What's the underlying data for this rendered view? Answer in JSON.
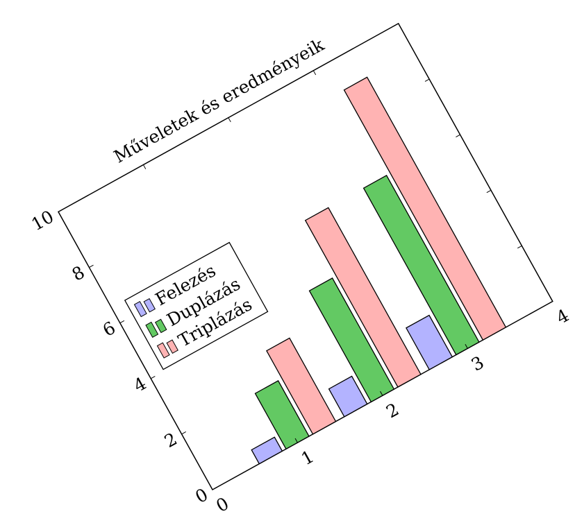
{
  "chart_data": {
    "type": "bar",
    "title": "Műveletek és eredményeik",
    "xlabel": "",
    "ylabel": "",
    "x": [
      1,
      2,
      3
    ],
    "xlim": [
      0,
      4
    ],
    "ylim": [
      0,
      10
    ],
    "xticks": [
      "0",
      "1",
      "2",
      "3",
      "4"
    ],
    "yticks": [
      "0",
      "2",
      "4",
      "6",
      "8",
      "10"
    ],
    "grid": false,
    "legend_position": "top-left",
    "series": [
      {
        "name": "Felezés",
        "values": [
          0.5,
          1.0,
          1.5
        ],
        "color": "#b3b3ff"
      },
      {
        "name": "Duplázás",
        "values": [
          2.0,
          4.0,
          6.0
        ],
        "color": "#63c963"
      },
      {
        "name": "Triplázás",
        "values": [
          3.0,
          6.0,
          9.0
        ],
        "color": "#ffb3b3"
      }
    ]
  }
}
